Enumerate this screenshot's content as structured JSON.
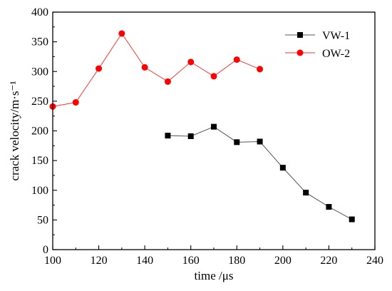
{
  "chart_data": {
    "type": "line",
    "title": "",
    "xlabel": "time /μs",
    "ylabel": "crack velocity/m·s⁻¹",
    "xlim": [
      100,
      240
    ],
    "ylim": [
      0,
      400
    ],
    "xticks": [
      100,
      120,
      140,
      160,
      180,
      200,
      220,
      240
    ],
    "yticks": [
      0,
      50,
      100,
      150,
      200,
      250,
      300,
      350,
      400
    ],
    "grid": false,
    "legend_position": "top-right",
    "series": [
      {
        "name": "VW-1",
        "marker": "square",
        "color": "#000000",
        "line_color": "#555555",
        "x": [
          150,
          160,
          170,
          180,
          190,
          200,
          210,
          220,
          230
        ],
        "y": [
          192,
          191,
          207,
          181,
          182,
          138,
          96,
          72,
          51
        ]
      },
      {
        "name": "OW-2",
        "marker": "circle",
        "color": "#ff0000",
        "line_color": "#ff3333",
        "x": [
          100,
          110,
          120,
          130,
          140,
          150,
          160,
          170,
          180,
          190
        ],
        "y": [
          241,
          248,
          305,
          364,
          307,
          283,
          316,
          292,
          320,
          304
        ]
      }
    ]
  }
}
